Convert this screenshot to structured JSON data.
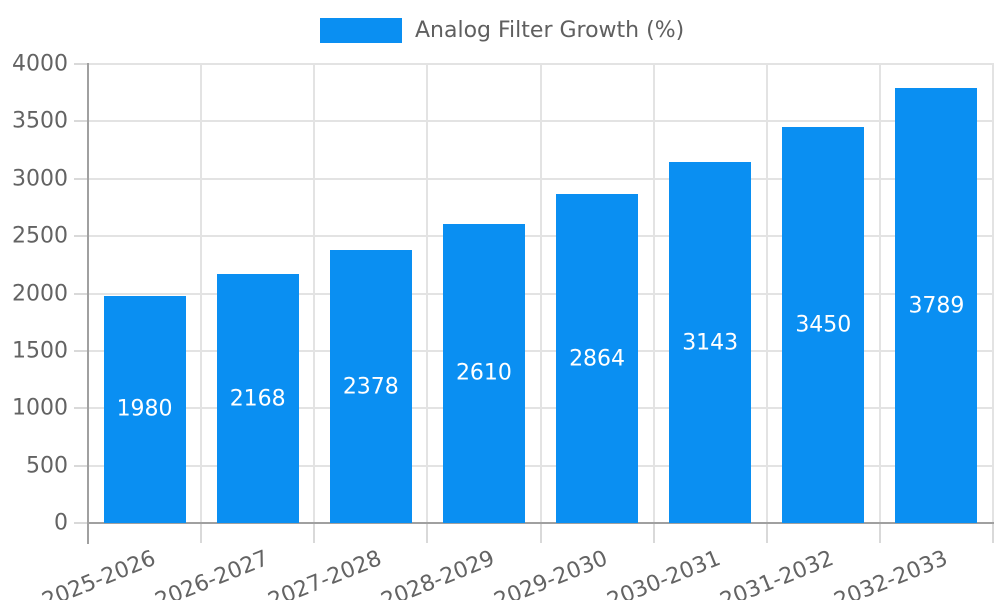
{
  "colors": {
    "bar": "#0A8FF2",
    "grid_line": "#e3e3e3",
    "tick_line": "#d9d9d9",
    "axis_line": "#a0a0a0",
    "axis_text": "#636363",
    "legend_text": "#5f5f5f",
    "value_text": "#ffffff",
    "background": "#ffffff"
  },
  "chart_data": {
    "type": "bar",
    "legend": "Analog Filter Growth (%)",
    "categories": [
      "2025-2026",
      "2026-2027",
      "2027-2028",
      "2028-2029",
      "2029-2030",
      "2030-2031",
      "2031-2032",
      "2032-2033"
    ],
    "values": [
      1980,
      2168,
      2378,
      2610,
      2864,
      3143,
      3450,
      3789
    ],
    "title": "",
    "xlabel": "",
    "ylabel": "",
    "ylim": [
      0,
      4000
    ],
    "yticks": [
      0,
      500,
      1000,
      1500,
      2000,
      2500,
      3000,
      3500,
      4000
    ],
    "grid": true,
    "legend_position": "top-center",
    "x_label_rotation_deg": 22,
    "value_labels": "inside-center"
  }
}
